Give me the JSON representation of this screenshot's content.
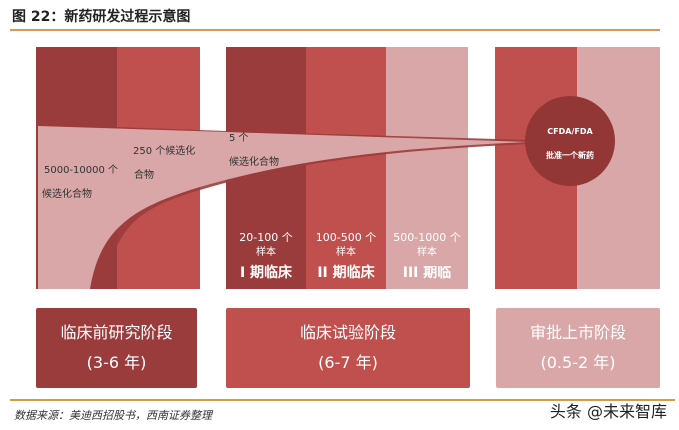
{
  "title": "图 22：新药研发过程示意图",
  "funnel": {
    "stage1": "5000-10000 个",
    "stage1b": "候选化合物",
    "stage2": "250 个候选化",
    "stage2b": "合物",
    "stage3": "5 个",
    "stage3b": "候选化合物"
  },
  "approval": {
    "line1": "CFDA/FDA",
    "line2": "批准一个新药"
  },
  "trials": [
    {
      "count": "20-100 个",
      "unit": "样本",
      "name": "I 期临床"
    },
    {
      "count": "100-500 个",
      "unit": "样本",
      "name": "II 期临床"
    },
    {
      "count": "500-1000 个",
      "unit": "样本",
      "name": "III 期临"
    }
  ],
  "phases": [
    {
      "name": "临床前研究阶段",
      "duration": "(3-6 年)"
    },
    {
      "name": "临床试验阶段",
      "duration": "(6-7 年)"
    },
    {
      "name": "审批上市阶段",
      "duration": "(0.5-2 年)"
    }
  ],
  "source": "数据来源：美迪西招股书，西南证券整理",
  "watermark": "头条 @未来智库",
  "colors": {
    "dark": "#9b3c3c",
    "medium": "#c0504d",
    "light": "#d9a7a7",
    "accent_line": "#d89a4a"
  }
}
